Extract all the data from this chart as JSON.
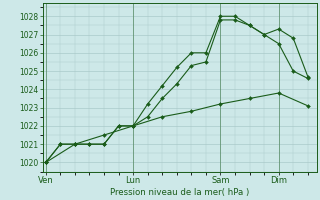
{
  "background_color": "#cde8e8",
  "grid_color": "#aacaca",
  "line_color": "#1a5c1a",
  "title": "Pression niveau de la mer( hPa )",
  "x_ticks_labels": [
    "Ven",
    "Lun",
    "Sam",
    "Dim"
  ],
  "x_ticks_pos": [
    0,
    3,
    6,
    8
  ],
  "ylim": [
    1019.5,
    1028.7
  ],
  "yticks": [
    1020,
    1021,
    1022,
    1023,
    1024,
    1025,
    1026,
    1027,
    1028
  ],
  "xlim": [
    -0.1,
    9.3
  ],
  "series": [
    {
      "x": [
        0,
        0.5,
        1.0,
        1.5,
        2.0,
        2.5,
        3.0,
        3.5,
        4.0,
        4.5,
        5.0,
        5.5,
        6.0,
        6.5,
        7.0,
        7.5,
        8.0,
        8.5,
        9.0
      ],
      "y": [
        1020.0,
        1021.0,
        1021.0,
        1021.0,
        1021.0,
        1022.0,
        1022.0,
        1023.2,
        1024.2,
        1025.2,
        1026.0,
        1026.0,
        1028.0,
        1028.0,
        1027.5,
        1027.0,
        1026.5,
        1025.0,
        1024.6
      ]
    },
    {
      "x": [
        0,
        0.5,
        1.0,
        1.5,
        2.0,
        2.5,
        3.0,
        3.5,
        4.0,
        4.5,
        5.0,
        5.5,
        6.0,
        6.5,
        7.0,
        7.5,
        8.0,
        8.5,
        9.0
      ],
      "y": [
        1020.0,
        1021.0,
        1021.0,
        1021.0,
        1021.0,
        1022.0,
        1022.0,
        1022.5,
        1023.5,
        1024.3,
        1025.3,
        1025.5,
        1027.8,
        1027.8,
        1027.5,
        1027.0,
        1027.3,
        1026.8,
        1024.7
      ]
    },
    {
      "x": [
        0,
        1,
        2,
        3,
        4,
        5,
        6,
        7,
        8,
        9
      ],
      "y": [
        1020.0,
        1021.0,
        1021.5,
        1022.0,
        1022.5,
        1022.8,
        1023.2,
        1023.5,
        1023.8,
        1023.1
      ]
    }
  ],
  "figsize": [
    3.2,
    2.0
  ],
  "dpi": 100
}
